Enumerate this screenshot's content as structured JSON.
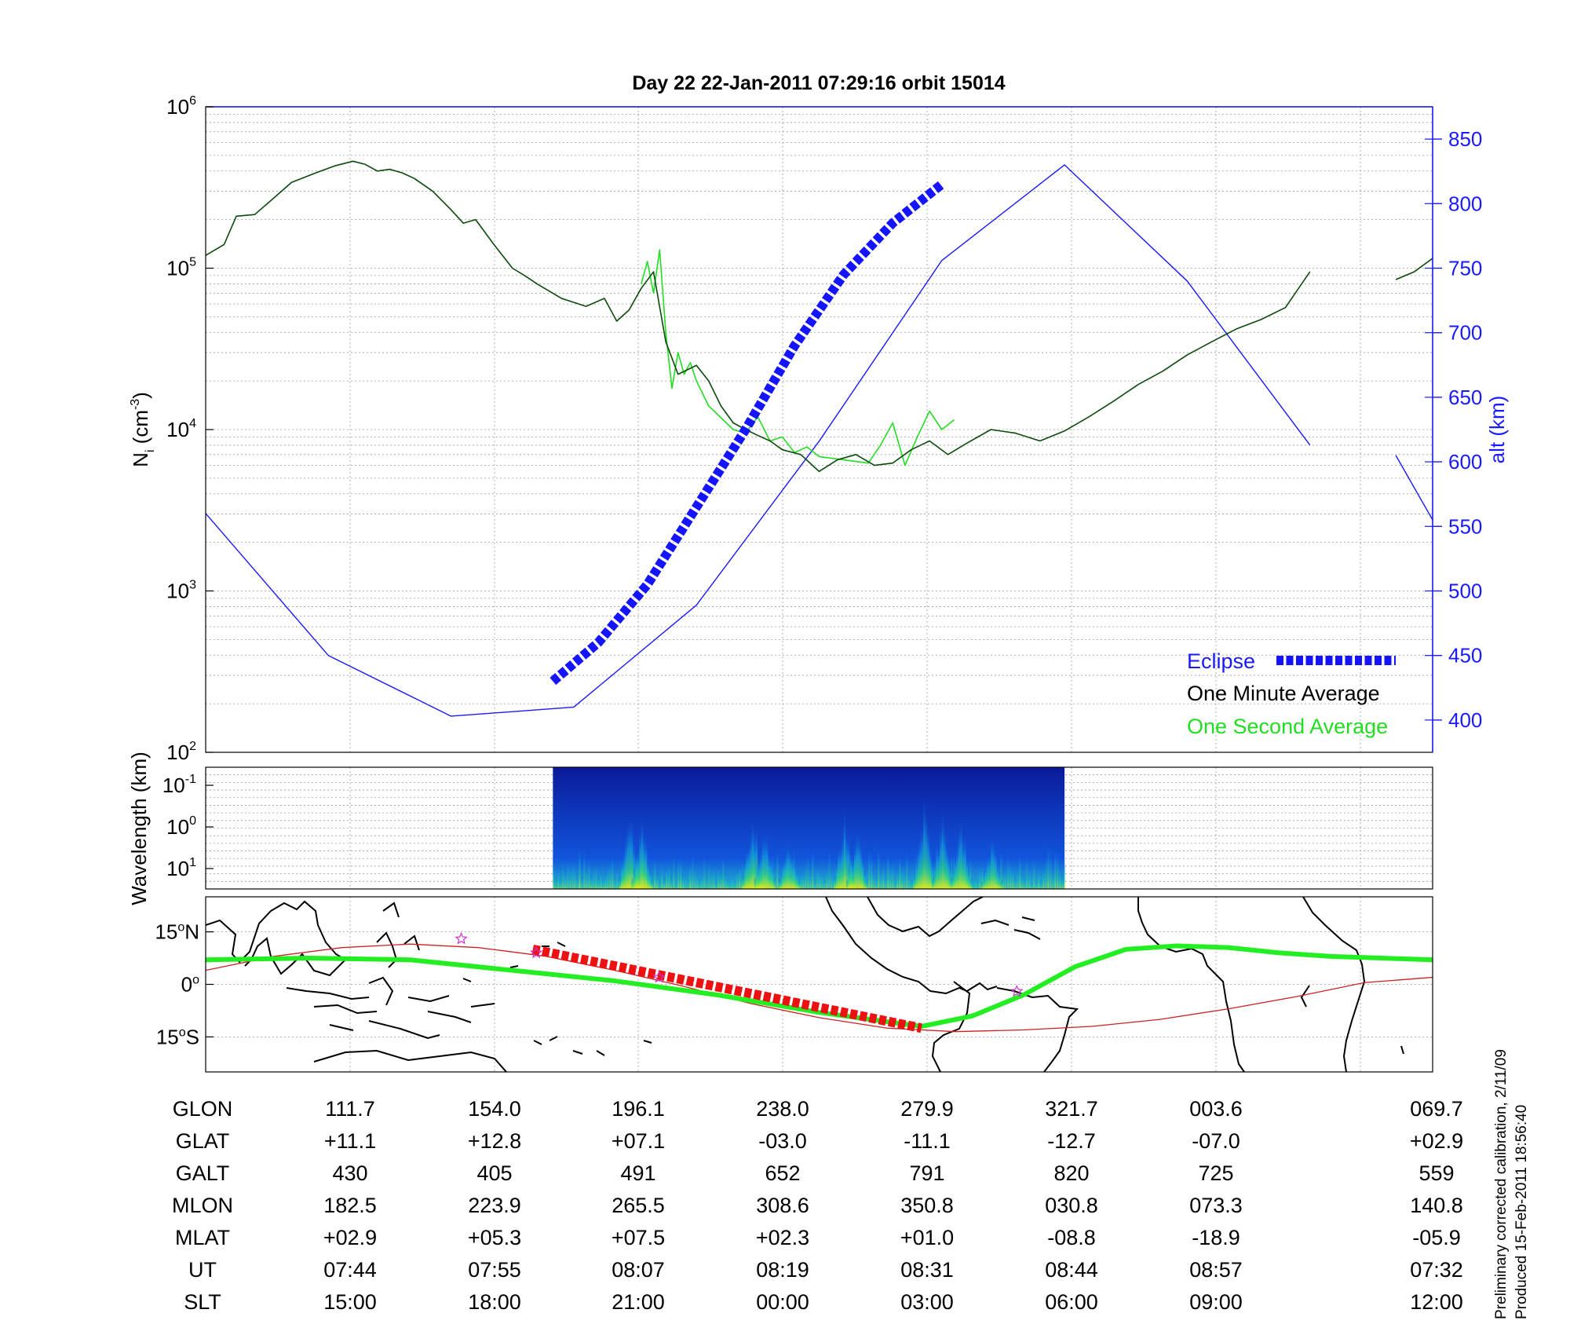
{
  "title": "Day 22  22-Jan-2011 07:29:16   orbit 15014",
  "colors": {
    "one_minute": "#0b4a0b",
    "one_second": "#22dd22",
    "eclipse": "#1414ff",
    "altitude": "#1a1aff",
    "ground_track": "#22ee22",
    "magnetic_equator": "#cc2222",
    "eclipse_track": "#ee1111"
  },
  "chart_data": [
    {
      "type": "line",
      "title": "Day 22  22-Jan-2011 07:29:16   orbit 15014",
      "ylabel": "N",
      "ylabel_sub": "i",
      "ylabel_unit_pre": " (cm",
      "ylabel_unit_sup": "-3",
      "ylabel_unit_post": ")",
      "y_scale": "log",
      "ylim": [
        100,
        1000000
      ],
      "y_ticks": [
        {
          "base": "10",
          "exp": "2"
        },
        {
          "base": "10",
          "exp": "3"
        },
        {
          "base": "10",
          "exp": "4"
        },
        {
          "base": "10",
          "exp": "5"
        },
        {
          "base": "10",
          "exp": "6"
        }
      ],
      "y2label": "alt (km)",
      "y2lim": [
        375,
        875
      ],
      "y2_ticks": [
        "400",
        "450",
        "500",
        "550",
        "600",
        "650",
        "700",
        "750",
        "800",
        "850"
      ],
      "x_range": [
        0,
        1
      ],
      "grid": true,
      "legend_position": "bottom-right",
      "legend": [
        "Eclipse",
        "One Minute Average",
        "One Second Average"
      ],
      "series": [
        {
          "name": "One Minute Average",
          "x": [
            0.0,
            0.015,
            0.025,
            0.04,
            0.055,
            0.07,
            0.09,
            0.105,
            0.12,
            0.13,
            0.14,
            0.15,
            0.16,
            0.17,
            0.185,
            0.2,
            0.21,
            0.22,
            0.235,
            0.25,
            0.26,
            0.27,
            0.29,
            0.31,
            0.325,
            0.335,
            0.345,
            0.355,
            0.365,
            0.375,
            0.385,
            0.4,
            0.41,
            0.42,
            0.43,
            0.44,
            0.45,
            0.46,
            0.47,
            0.485,
            0.5,
            0.515,
            0.53,
            0.545,
            0.56,
            0.575,
            0.59,
            0.605,
            0.62,
            0.64,
            0.66,
            0.68,
            0.7,
            0.72,
            0.74,
            0.76,
            0.78,
            0.8,
            0.82,
            0.84,
            0.86,
            0.88,
            0.9
          ],
          "y": [
            120000,
            140000,
            210000,
            215000,
            270000,
            340000,
            390000,
            430000,
            460000,
            440000,
            400000,
            410000,
            390000,
            360000,
            300000,
            230000,
            190000,
            200000,
            140000,
            100000,
            90000,
            80000,
            65000,
            58000,
            65000,
            47000,
            55000,
            75000,
            95000,
            35000,
            22000,
            25000,
            20000,
            14000,
            11000,
            10000,
            9200,
            8500,
            7500,
            7000,
            5500,
            6500,
            7000,
            6000,
            6200,
            7500,
            8500,
            7000,
            8200,
            10000,
            9500,
            8500,
            9800,
            12000,
            15000,
            19000,
            23000,
            29000,
            35000,
            42000,
            48000,
            57000,
            95000
          ]
        },
        {
          "name": "",
          "x": [
            0.97,
            0.985,
            1.0
          ],
          "y": [
            85000,
            95000,
            115000
          ]
        },
        {
          "name": "One Second Average",
          "x": [
            0.355,
            0.36,
            0.365,
            0.37,
            0.375,
            0.38,
            0.385,
            0.39,
            0.395,
            0.4,
            0.41,
            0.43,
            0.44,
            0.45,
            0.46,
            0.47,
            0.48,
            0.49,
            0.5,
            0.54,
            0.55,
            0.56,
            0.57,
            0.58,
            0.59,
            0.6,
            0.61
          ],
          "y": [
            80000,
            110000,
            70000,
            130000,
            40000,
            18000,
            30000,
            22000,
            26000,
            20000,
            14000,
            10000,
            9500,
            12000,
            8500,
            9000,
            7200,
            7800,
            6800,
            6200,
            8000,
            11000,
            6000,
            9000,
            13000,
            10000,
            11500
          ]
        },
        {
          "name": "Eclipse",
          "x": [
            0.283,
            0.32,
            0.36,
            0.4,
            0.44,
            0.48,
            0.52,
            0.56,
            0.6
          ],
          "y2": [
            430,
            460,
            505,
            565,
            625,
            690,
            745,
            785,
            815
          ]
        },
        {
          "name": "",
          "x": [
            0,
            0.1,
            0.2,
            0.3,
            0.4,
            0.5,
            0.6,
            0.7,
            0.8,
            0.9
          ],
          "y2": [
            560,
            450,
            403,
            410,
            489,
            616,
            756,
            830,
            740,
            613
          ]
        },
        {
          "name": "",
          "x": [
            0.97,
            1.0
          ],
          "y2": [
            605,
            555
          ]
        }
      ]
    },
    {
      "type": "heatmap",
      "ylabel": "Wavelength (km)",
      "y_ticks": [
        {
          "base": "10",
          "exp": "-1"
        },
        {
          "base": "10",
          "exp": "0"
        },
        {
          "base": "10",
          "exp": "1"
        }
      ],
      "data_x_range": [
        0.283,
        0.7
      ],
      "bursts": [
        {
          "x": 0.345,
          "strength": 0.95
        },
        {
          "x": 0.355,
          "strength": 0.8
        },
        {
          "x": 0.445,
          "strength": 0.9
        },
        {
          "x": 0.455,
          "strength": 0.75
        },
        {
          "x": 0.475,
          "strength": 0.6
        },
        {
          "x": 0.52,
          "strength": 0.85
        },
        {
          "x": 0.53,
          "strength": 0.7
        },
        {
          "x": 0.585,
          "strength": 0.95
        },
        {
          "x": 0.6,
          "strength": 0.9
        },
        {
          "x": 0.615,
          "strength": 0.85
        },
        {
          "x": 0.64,
          "strength": 0.6
        }
      ]
    },
    {
      "type": "map",
      "y_ticks": [
        {
          "num": "15",
          "deg": "o",
          "hemi": "N"
        },
        {
          "num": "0",
          "deg": "o",
          "hemi": ""
        },
        {
          "num": "15",
          "deg": "o",
          "hemi": "S"
        }
      ],
      "ylim": [
        -25,
        25
      ],
      "lon_range": [
        90,
        450
      ],
      "ground_track": {
        "lon": [
          90,
          120,
          150,
          180,
          210,
          240,
          270,
          300,
          315,
          330,
          345,
          360,
          375,
          390,
          405,
          420,
          435,
          450
        ],
        "lat": [
          7,
          7.5,
          7,
          4,
          1,
          -3,
          -8,
          -12,
          -9,
          -3,
          5,
          10,
          11,
          10.5,
          9,
          8,
          7.5,
          7
        ]
      },
      "magnetic_equator": {
        "lon": [
          90,
          110,
          130,
          150,
          170,
          190,
          210,
          230,
          250,
          270,
          290,
          310,
          330,
          350,
          370,
          390,
          410,
          430,
          450
        ],
        "lat": [
          4,
          8,
          10.5,
          11.5,
          10.5,
          8,
          4,
          -0.5,
          -5.5,
          -9.5,
          -12.5,
          -13.5,
          -13,
          -12,
          -10,
          -7,
          -3.5,
          0.5,
          2
        ]
      },
      "eclipse_track": {
        "lon": [
          186,
          300
        ],
        "lat": [
          10,
          -12.5
        ]
      },
      "stars": [
        {
          "lon": 165,
          "lat": 13
        },
        {
          "lon": 187,
          "lat": 9
        },
        {
          "lon": 223,
          "lat": 2
        },
        {
          "lon": 328,
          "lat": -2
        }
      ]
    }
  ],
  "table": {
    "labels": [
      "GLON",
      "GLAT",
      "GALT",
      "MLON",
      "MLAT",
      "UT",
      "SLT"
    ],
    "columns": [
      [
        "111.7",
        "+11.1",
        "430",
        "182.5",
        "+02.9",
        "07:44",
        "15:00"
      ],
      [
        "154.0",
        "+12.8",
        "405",
        "223.9",
        "+05.3",
        "07:55",
        "18:00"
      ],
      [
        "196.1",
        "+07.1",
        "491",
        "265.5",
        "+07.5",
        "08:07",
        "21:00"
      ],
      [
        "238.0",
        "-03.0",
        "652",
        "308.6",
        "+02.3",
        "08:19",
        "00:00"
      ],
      [
        "279.9",
        "-11.1",
        "791",
        "350.8",
        "+01.0",
        "08:31",
        "03:00"
      ],
      [
        "321.7",
        "-12.7",
        "820",
        "030.8",
        "-08.8",
        "08:44",
        "06:00"
      ],
      [
        "003.6",
        "-07.0",
        "725",
        "073.3",
        "-18.9",
        "08:57",
        "09:00"
      ],
      [
        "069.7",
        "+02.9",
        "559",
        "140.8",
        "-05.9",
        "07:32",
        "12:00"
      ]
    ]
  },
  "footnote": [
    "Preliminary corrected calibration, 2/11/09",
    "Produced 15-Feb-2011 18:56:40"
  ]
}
